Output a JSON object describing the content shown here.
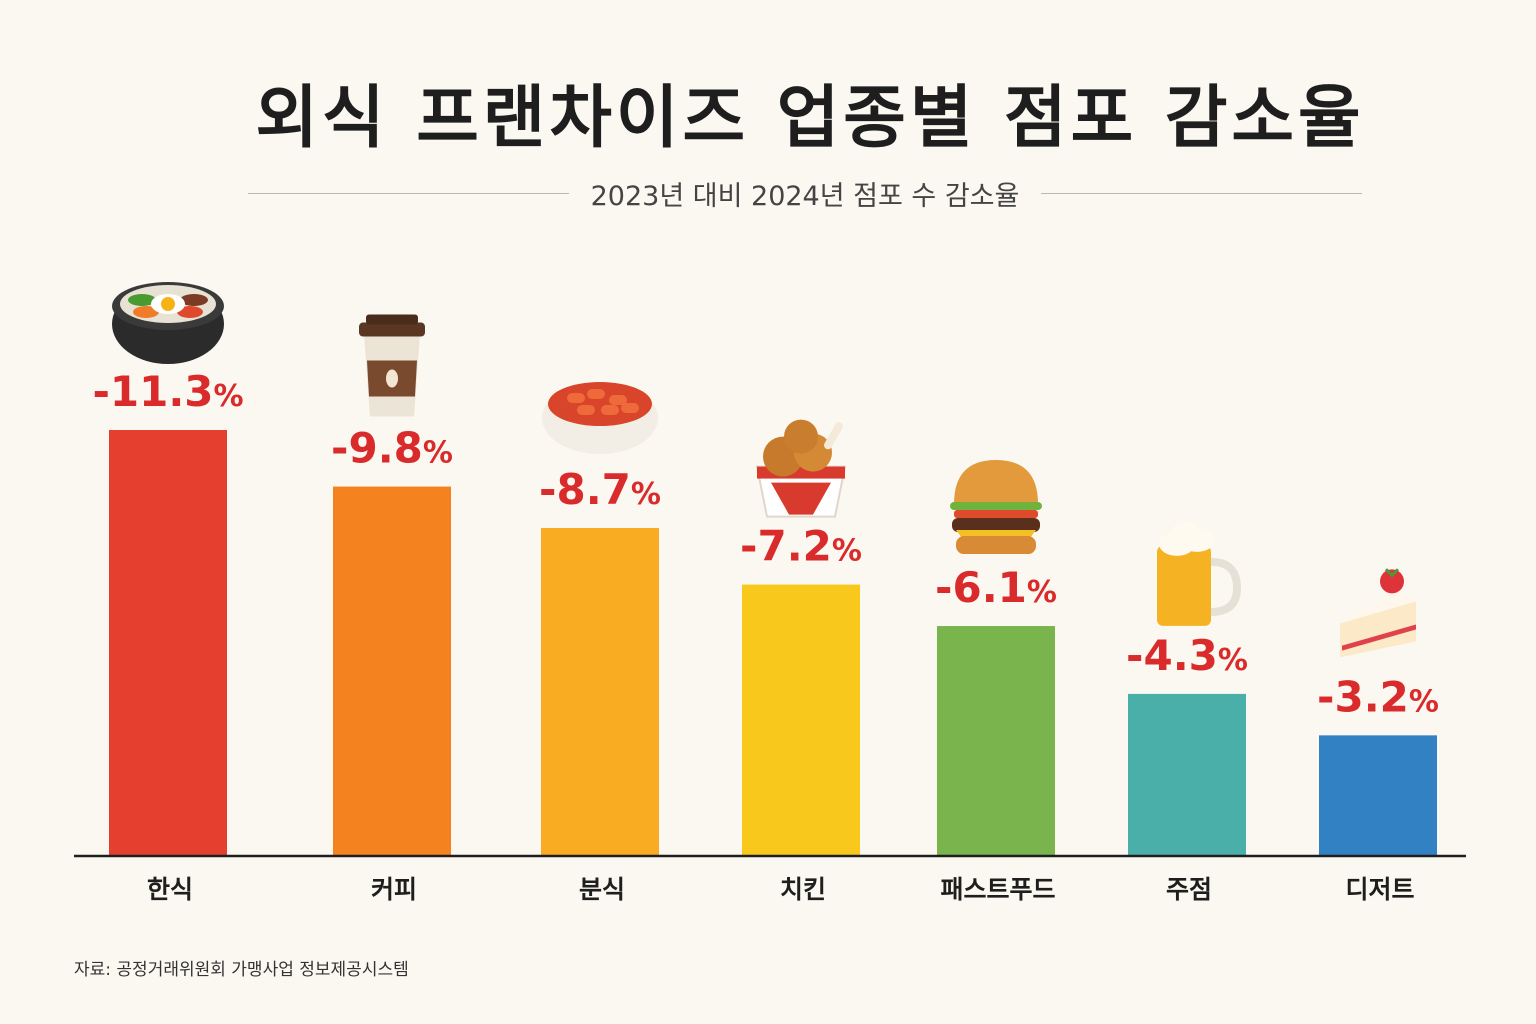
{
  "title": "외식 프랜차이즈 업종별 점포 감소율",
  "subtitle": "2023년 대비 2024년 점포 수 감소율",
  "source": "자료: 공정거래위원회 가맹사업 정보제공시스템",
  "value_color": "#d92b2b",
  "chart_data": {
    "type": "bar",
    "title": "외식 프랜차이즈 업종별 점포 감소율",
    "subtitle": "2023년 대비 2024년 점포 수 감소율",
    "categories": [
      "한식",
      "커피",
      "분식",
      "치킨",
      "패스트푸드",
      "주점",
      "디저트"
    ],
    "values": [
      -11.3,
      -9.8,
      -8.7,
      -7.2,
      -6.1,
      -4.3,
      -3.2
    ],
    "value_labels": [
      "-11.3%",
      "-9.8%",
      "-8.7%",
      "-7.2%",
      "-6.1%",
      "-4.3%",
      "-3.2%"
    ],
    "colors": [
      "#e5402f",
      "#f4821f",
      "#f9ab22",
      "#f8c81c",
      "#79b54c",
      "#4aaea9",
      "#3281c2"
    ],
    "icons": [
      "bibimbap-icon",
      "coffee-cup-icon",
      "tteokbokki-icon",
      "fried-chicken-icon",
      "burger-icon",
      "beer-mug-icon",
      "strawberry-cake-icon"
    ],
    "grid": false,
    "legend": "none",
    "ylim": [
      0,
      11.3
    ]
  }
}
